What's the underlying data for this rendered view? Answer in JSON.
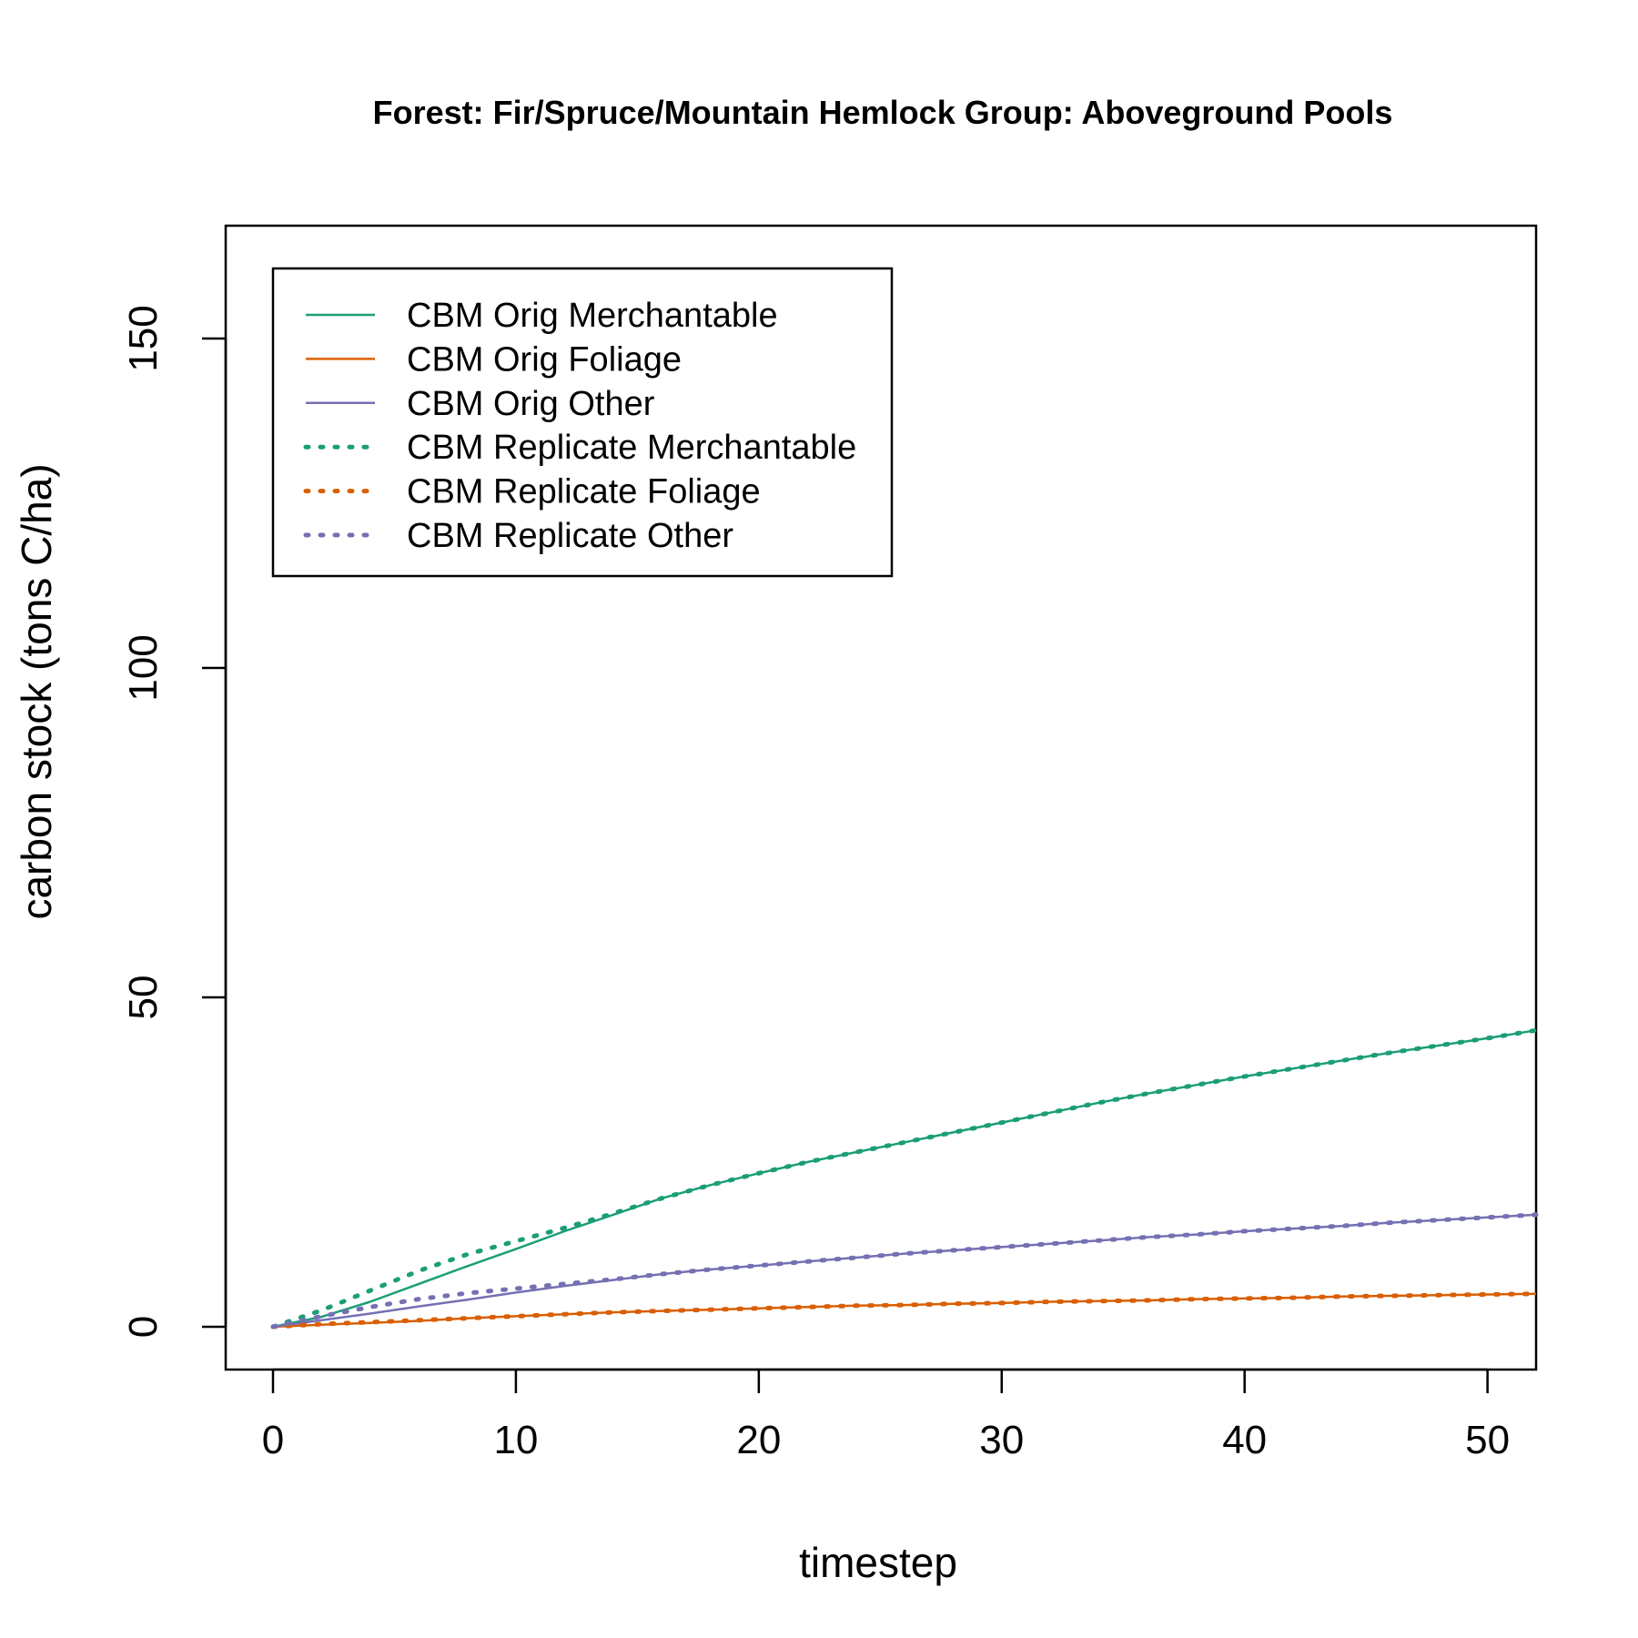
{
  "chart_data": {
    "type": "line",
    "title": "Forest: Fir/Spruce/Mountain Hemlock Group: Aboveground Pools",
    "xlabel": "timestep",
    "ylabel": "carbon stock (tons C/ha)",
    "xlim": [
      0,
      52
    ],
    "ylim": [
      0,
      170
    ],
    "xticks": [
      0,
      10,
      20,
      30,
      40,
      50
    ],
    "yticks": [
      0,
      50,
      100,
      150
    ],
    "grid": false,
    "legend_position": "top-left",
    "series": [
      {
        "name": "CBM Orig Merchantable",
        "color": "#1b9e77",
        "style": "solid",
        "x": [
          0,
          2,
          4,
          6,
          8,
          10,
          12,
          14,
          16,
          18,
          20,
          22,
          24,
          26,
          28,
          30,
          32,
          34,
          36,
          38,
          40,
          42,
          44,
          46,
          48,
          50,
          52
        ],
        "y": [
          0,
          1.5,
          3.8,
          6.5,
          9.2,
          11.8,
          14.5,
          17.0,
          19.5,
          21.5,
          23.3,
          25.0,
          26.5,
          28.0,
          29.5,
          31.0,
          32.5,
          34.0,
          35.4,
          36.7,
          38.0,
          39.2,
          40.4,
          41.6,
          42.7,
          43.8,
          45.0
        ]
      },
      {
        "name": "CBM Orig Foliage",
        "color": "#d95f02",
        "style": "solid",
        "x": [
          0,
          2,
          4,
          6,
          8,
          10,
          12,
          14,
          16,
          18,
          20,
          22,
          24,
          26,
          28,
          30,
          32,
          34,
          36,
          38,
          40,
          42,
          44,
          46,
          48,
          50,
          52
        ],
        "y": [
          0,
          0.3,
          0.6,
          0.9,
          1.3,
          1.6,
          1.9,
          2.2,
          2.4,
          2.6,
          2.8,
          3.0,
          3.2,
          3.3,
          3.5,
          3.6,
          3.8,
          3.9,
          4.0,
          4.2,
          4.3,
          4.4,
          4.6,
          4.7,
          4.8,
          4.9,
          5.0
        ]
      },
      {
        "name": "CBM Orig Other",
        "color": "#7570b3",
        "style": "solid",
        "x": [
          0,
          2,
          4,
          6,
          8,
          10,
          12,
          14,
          16,
          18,
          20,
          22,
          24,
          26,
          28,
          30,
          32,
          34,
          36,
          38,
          40,
          42,
          44,
          46,
          48,
          50,
          52
        ],
        "y": [
          0,
          1.0,
          2.0,
          3.1,
          4.1,
          5.2,
          6.2,
          7.1,
          8.0,
          8.7,
          9.3,
          9.9,
          10.5,
          11.1,
          11.6,
          12.1,
          12.6,
          13.1,
          13.6,
          14.0,
          14.5,
          14.9,
          15.3,
          15.8,
          16.2,
          16.6,
          17.0
        ]
      },
      {
        "name": "CBM Replicate Merchantable",
        "color": "#1b9e77",
        "style": "dotted",
        "x": [
          0,
          2,
          4,
          6,
          8,
          10,
          12,
          14,
          16,
          18,
          20,
          22,
          24,
          26,
          28,
          30,
          32,
          34,
          36,
          38,
          40,
          42,
          44,
          46,
          48,
          50,
          52
        ],
        "y": [
          0,
          2.5,
          5.5,
          8.5,
          11.0,
          13.0,
          15.0,
          17.2,
          19.5,
          21.5,
          23.3,
          25.0,
          26.5,
          28.0,
          29.5,
          31.0,
          32.5,
          34.0,
          35.4,
          36.7,
          38.0,
          39.2,
          40.4,
          41.6,
          42.7,
          43.8,
          45.0
        ]
      },
      {
        "name": "CBM Replicate Foliage",
        "color": "#d95f02",
        "style": "dotted",
        "x": [
          0,
          2,
          4,
          6,
          8,
          10,
          12,
          14,
          16,
          18,
          20,
          22,
          24,
          26,
          28,
          30,
          32,
          34,
          36,
          38,
          40,
          42,
          44,
          46,
          48,
          50,
          52
        ],
        "y": [
          0,
          0.4,
          0.7,
          1.0,
          1.3,
          1.6,
          1.9,
          2.2,
          2.4,
          2.6,
          2.8,
          3.0,
          3.2,
          3.3,
          3.5,
          3.6,
          3.8,
          3.9,
          4.0,
          4.2,
          4.3,
          4.4,
          4.6,
          4.7,
          4.8,
          4.9,
          5.0
        ]
      },
      {
        "name": "CBM Replicate Other",
        "color": "#7570b3",
        "style": "dotted",
        "x": [
          0,
          2,
          4,
          6,
          8,
          10,
          12,
          14,
          16,
          18,
          20,
          22,
          24,
          26,
          28,
          30,
          32,
          34,
          36,
          38,
          40,
          42,
          44,
          46,
          48,
          50,
          52
        ],
        "y": [
          0,
          1.6,
          3.0,
          4.2,
          5.1,
          5.8,
          6.5,
          7.2,
          8.0,
          8.7,
          9.3,
          9.9,
          10.5,
          11.1,
          11.6,
          12.1,
          12.6,
          13.1,
          13.6,
          14.0,
          14.5,
          14.9,
          15.3,
          15.8,
          16.2,
          16.6,
          17.0
        ]
      }
    ]
  }
}
